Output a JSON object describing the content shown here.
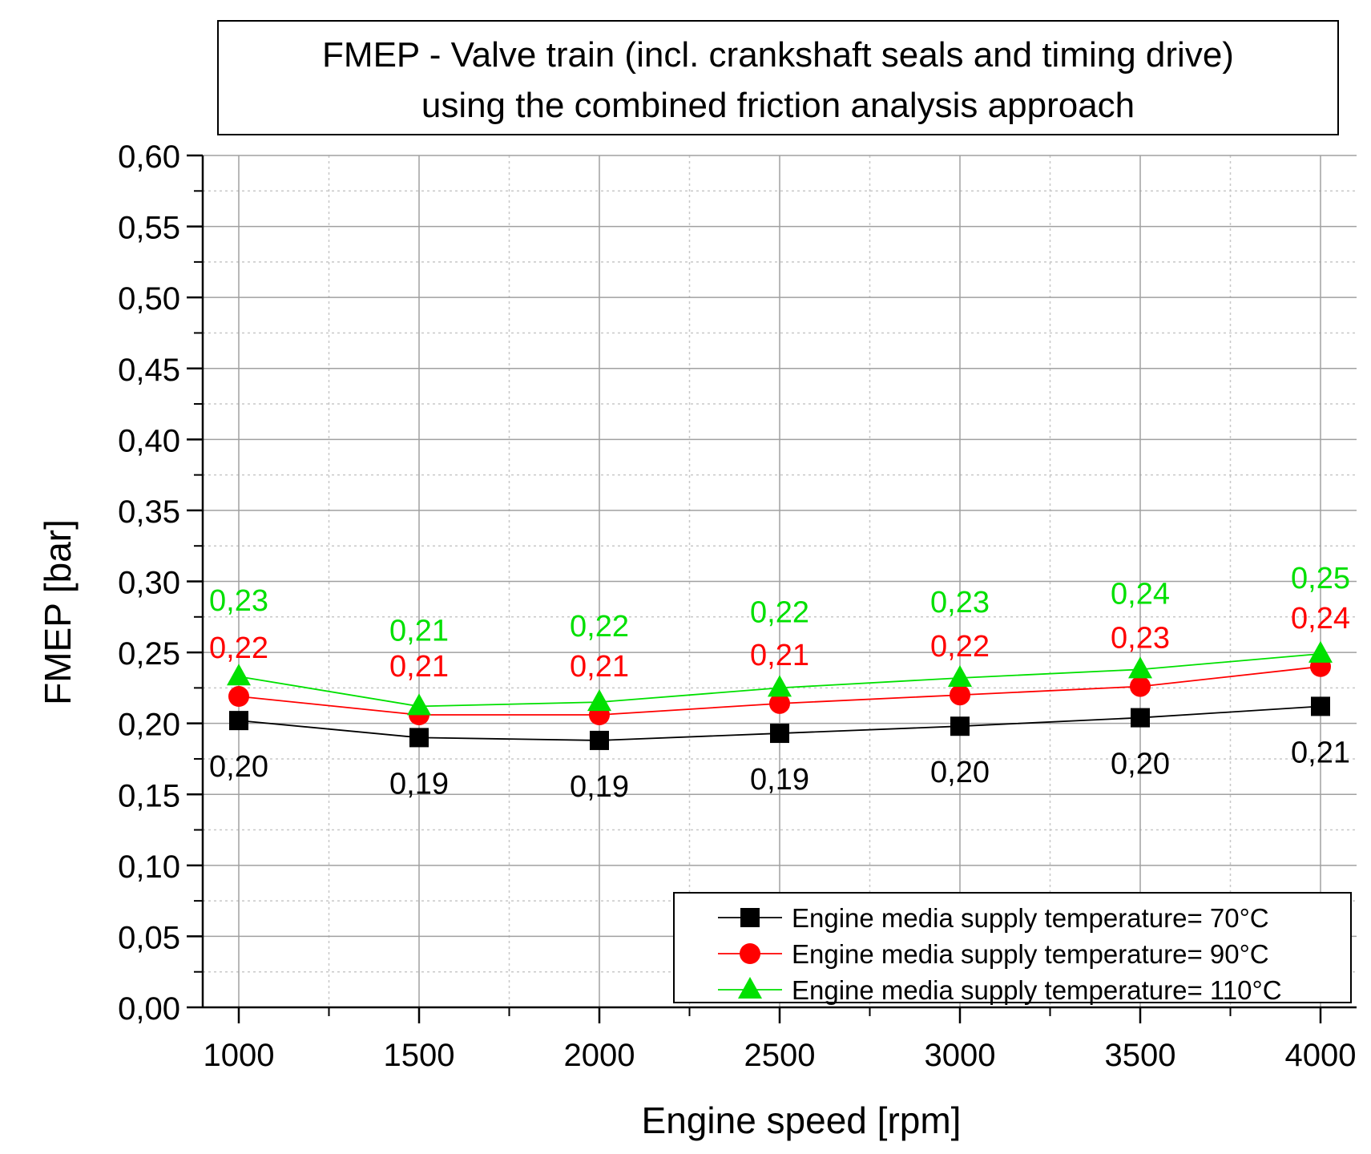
{
  "chart_data": {
    "type": "line",
    "title": [
      "FMEP - Valve train (incl. crankshaft seals and timing drive)",
      "using the combined friction analysis approach"
    ],
    "xlabel": "Engine speed [rpm]",
    "ylabel": "FMEP [bar]",
    "xlim": [
      900,
      4100
    ],
    "ylim": [
      0.0,
      0.6
    ],
    "x": [
      1000,
      1500,
      2000,
      2500,
      3000,
      3500,
      4000
    ],
    "x_ticks": [
      "1000",
      "1500",
      "2000",
      "2500",
      "3000",
      "3500",
      "4000"
    ],
    "y_ticks": [
      "0,00",
      "0,05",
      "0,10",
      "0,15",
      "0,20",
      "0,25",
      "0,30",
      "0,35",
      "0,40",
      "0,45",
      "0,50",
      "0,55",
      "0,60"
    ],
    "y_tick_values": [
      0.0,
      0.05,
      0.1,
      0.15,
      0.2,
      0.25,
      0.3,
      0.35,
      0.4,
      0.45,
      0.5,
      0.55,
      0.6
    ],
    "grid": true,
    "legend_position": "bottom-right",
    "series": [
      {
        "name": "Engine media supply temperature= 70°C",
        "color": "#000000",
        "marker": "square",
        "values": [
          0.202,
          0.19,
          0.188,
          0.193,
          0.198,
          0.204,
          0.212
        ],
        "labels": [
          "0,20",
          "0,19",
          "0,19",
          "0,19",
          "0,20",
          "0,20",
          "0,21"
        ],
        "label_side": "below"
      },
      {
        "name": "Engine media supply temperature= 90°C",
        "color": "#ff0000",
        "marker": "circle",
        "values": [
          0.219,
          0.206,
          0.206,
          0.214,
          0.22,
          0.226,
          0.24
        ],
        "labels": [
          "0,22",
          "0,21",
          "0,21",
          "0,21",
          "0,22",
          "0,23",
          "0,24"
        ],
        "label_side": "above"
      },
      {
        "name": "Engine media supply temperature= 110°C",
        "color": "#00e000",
        "marker": "triangle",
        "values": [
          0.233,
          0.212,
          0.215,
          0.225,
          0.232,
          0.238,
          0.249
        ],
        "labels": [
          "0,23",
          "0,21",
          "0,22",
          "0,22",
          "0,23",
          "0,24",
          "0,25"
        ],
        "label_side": "above"
      }
    ]
  }
}
